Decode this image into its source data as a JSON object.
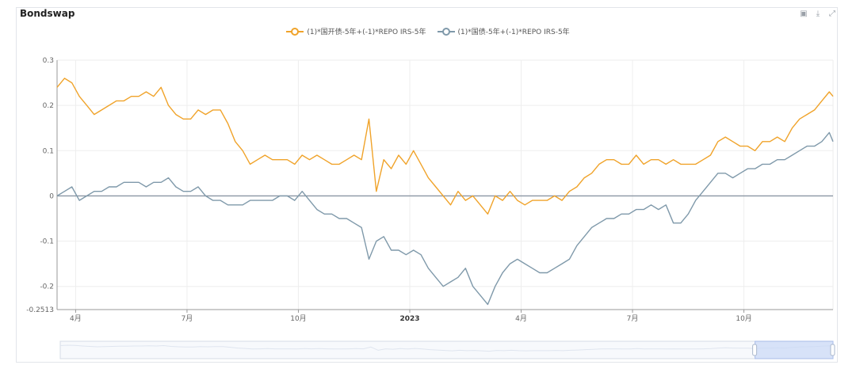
{
  "title": "Bondswap",
  "toolbar": {
    "icons": [
      "image-icon",
      "download-icon",
      "expand-icon"
    ],
    "glyphs": [
      "▣",
      "⤓",
      "⤢"
    ]
  },
  "colors": {
    "series1": "#f0a32a",
    "series2": "#7f99aa",
    "zero_line": "#8a96a3",
    "grid": "#eeeeee"
  },
  "chart_data": {
    "type": "line",
    "title": "Bondswap",
    "ylim": [
      -0.2513,
      0.3
    ],
    "yticks": [
      0.3,
      0.2,
      0.1,
      0,
      -0.1,
      -0.2,
      -0.2513
    ],
    "ytick_labels": [
      "0.3",
      "0.2",
      "0.1",
      "0",
      "-0.1",
      "-0.2",
      "-0.2513"
    ],
    "x_range": [
      0,
      20.9
    ],
    "xticks": [
      {
        "label": "4月",
        "x": 0.5,
        "bold": false
      },
      {
        "label": "7月",
        "x": 3.5,
        "bold": false
      },
      {
        "label": "10月",
        "x": 6.5,
        "bold": false
      },
      {
        "label": "2023",
        "x": 9.5,
        "bold": true
      },
      {
        "label": "4月",
        "x": 12.5,
        "bold": false
      },
      {
        "label": "7月",
        "x": 15.5,
        "bold": false
      },
      {
        "label": "10月",
        "x": 18.5,
        "bold": false
      }
    ],
    "x_unit": "months since 2022-03 start (approx.)",
    "series": [
      {
        "name": "(1)*国开债-5年+(-1)*REPO IRS-5年",
        "color": "#f0a32a",
        "x": [
          0,
          0.2,
          0.4,
          0.6,
          0.8,
          1.0,
          1.2,
          1.4,
          1.6,
          1.8,
          2.0,
          2.2,
          2.4,
          2.6,
          2.8,
          3.0,
          3.2,
          3.4,
          3.6,
          3.8,
          4.0,
          4.2,
          4.4,
          4.6,
          4.8,
          5.0,
          5.2,
          5.4,
          5.6,
          5.8,
          6.0,
          6.2,
          6.4,
          6.6,
          6.8,
          7.0,
          7.2,
          7.4,
          7.6,
          7.8,
          8.0,
          8.2,
          8.4,
          8.6,
          8.8,
          9.0,
          9.2,
          9.4,
          9.6,
          9.8,
          10.0,
          10.2,
          10.4,
          10.6,
          10.8,
          11.0,
          11.2,
          11.4,
          11.6,
          11.8,
          12.0,
          12.2,
          12.4,
          12.6,
          12.8,
          13.0,
          13.2,
          13.4,
          13.6,
          13.8,
          14.0,
          14.2,
          14.4,
          14.6,
          14.8,
          15.0,
          15.2,
          15.4,
          15.6,
          15.8,
          16.0,
          16.2,
          16.4,
          16.6,
          16.8,
          17.0,
          17.2,
          17.4,
          17.6,
          17.8,
          18.0,
          18.2,
          18.4,
          18.6,
          18.8,
          19.0,
          19.2,
          19.4,
          19.6,
          19.8,
          20.0,
          20.2,
          20.4,
          20.6,
          20.8,
          20.9
        ],
        "y": [
          0.24,
          0.26,
          0.25,
          0.22,
          0.2,
          0.18,
          0.19,
          0.2,
          0.21,
          0.21,
          0.22,
          0.22,
          0.23,
          0.22,
          0.24,
          0.2,
          0.18,
          0.17,
          0.17,
          0.19,
          0.18,
          0.19,
          0.19,
          0.16,
          0.12,
          0.1,
          0.07,
          0.08,
          0.09,
          0.08,
          0.08,
          0.08,
          0.07,
          0.09,
          0.08,
          0.09,
          0.08,
          0.07,
          0.07,
          0.08,
          0.09,
          0.08,
          0.17,
          0.01,
          0.08,
          0.06,
          0.09,
          0.07,
          0.1,
          0.07,
          0.04,
          0.02,
          0.0,
          -0.02,
          0.01,
          -0.01,
          0.0,
          -0.02,
          -0.04,
          0.0,
          -0.01,
          0.01,
          -0.01,
          -0.02,
          -0.01,
          -0.01,
          -0.01,
          0.0,
          -0.01,
          0.01,
          0.02,
          0.04,
          0.05,
          0.07,
          0.08,
          0.08,
          0.07,
          0.07,
          0.09,
          0.07,
          0.08,
          0.08,
          0.07,
          0.08,
          0.07,
          0.07,
          0.07,
          0.08,
          0.09,
          0.12,
          0.13,
          0.12,
          0.11,
          0.11,
          0.1,
          0.12,
          0.12,
          0.13,
          0.12,
          0.15,
          0.17,
          0.18,
          0.19,
          0.21,
          0.23,
          0.22
        ]
      },
      {
        "name": "(1)*国债-5年+(-1)*REPO IRS-5年",
        "color": "#7f99aa",
        "x": [
          0,
          0.2,
          0.4,
          0.6,
          0.8,
          1.0,
          1.2,
          1.4,
          1.6,
          1.8,
          2.0,
          2.2,
          2.4,
          2.6,
          2.8,
          3.0,
          3.2,
          3.4,
          3.6,
          3.8,
          4.0,
          4.2,
          4.4,
          4.6,
          4.8,
          5.0,
          5.2,
          5.4,
          5.6,
          5.8,
          6.0,
          6.2,
          6.4,
          6.6,
          6.8,
          7.0,
          7.2,
          7.4,
          7.6,
          7.8,
          8.0,
          8.2,
          8.4,
          8.6,
          8.8,
          9.0,
          9.2,
          9.4,
          9.6,
          9.8,
          10.0,
          10.2,
          10.4,
          10.6,
          10.8,
          11.0,
          11.2,
          11.4,
          11.6,
          11.8,
          12.0,
          12.2,
          12.4,
          12.6,
          12.8,
          13.0,
          13.2,
          13.4,
          13.6,
          13.8,
          14.0,
          14.2,
          14.4,
          14.6,
          14.8,
          15.0,
          15.2,
          15.4,
          15.6,
          15.8,
          16.0,
          16.2,
          16.4,
          16.6,
          16.8,
          17.0,
          17.2,
          17.4,
          17.6,
          17.8,
          18.0,
          18.2,
          18.4,
          18.6,
          18.8,
          19.0,
          19.2,
          19.4,
          19.6,
          19.8,
          20.0,
          20.2,
          20.4,
          20.6,
          20.8,
          20.9
        ],
        "y": [
          0.0,
          0.01,
          0.02,
          -0.01,
          0.0,
          0.01,
          0.01,
          0.02,
          0.02,
          0.03,
          0.03,
          0.03,
          0.02,
          0.03,
          0.03,
          0.04,
          0.02,
          0.01,
          0.01,
          0.02,
          0.0,
          -0.01,
          -0.01,
          -0.02,
          -0.02,
          -0.02,
          -0.01,
          -0.01,
          -0.01,
          -0.01,
          0.0,
          0.0,
          -0.01,
          0.01,
          -0.01,
          -0.03,
          -0.04,
          -0.04,
          -0.05,
          -0.05,
          -0.06,
          -0.07,
          -0.14,
          -0.1,
          -0.09,
          -0.12,
          -0.12,
          -0.13,
          -0.12,
          -0.13,
          -0.16,
          -0.18,
          -0.2,
          -0.19,
          -0.18,
          -0.16,
          -0.2,
          -0.22,
          -0.24,
          -0.2,
          -0.17,
          -0.15,
          -0.14,
          -0.15,
          -0.16,
          -0.17,
          -0.17,
          -0.16,
          -0.15,
          -0.14,
          -0.11,
          -0.09,
          -0.07,
          -0.06,
          -0.05,
          -0.05,
          -0.04,
          -0.04,
          -0.03,
          -0.03,
          -0.02,
          -0.03,
          -0.02,
          -0.06,
          -0.06,
          -0.04,
          -0.01,
          0.01,
          0.03,
          0.05,
          0.05,
          0.04,
          0.05,
          0.06,
          0.06,
          0.07,
          0.07,
          0.08,
          0.08,
          0.09,
          0.1,
          0.11,
          0.11,
          0.12,
          0.14,
          0.12
        ]
      }
    ]
  }
}
